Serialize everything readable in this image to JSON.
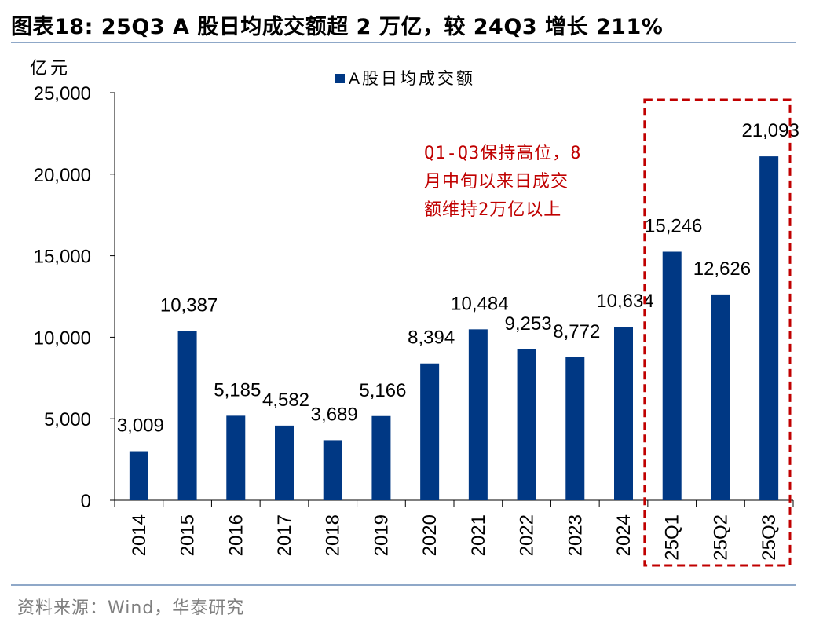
{
  "title": "图表18:  25Q3 A 股日均成交额超 2 万亿，较 24Q3 增长 211%",
  "source": "资料来源：Wind，华泰研究",
  "colors": {
    "bar": "#003884",
    "highlight_box": "#c00000",
    "annotation": "#c00000",
    "rule": "#8fa8c8"
  },
  "chart_data": {
    "type": "bar",
    "title": "图表18:  25Q3 A 股日均成交额超 2 万亿，较 24Q3 增长 211%",
    "ylabel": "亿元",
    "xlabel": "",
    "ylim": [
      0,
      25000
    ],
    "yticks": [
      0,
      5000,
      10000,
      15000,
      20000,
      25000
    ],
    "ytick_labels": [
      "0",
      "5,000",
      "10,000",
      "15,000",
      "20,000",
      "25,000"
    ],
    "legend": [
      "A股日均成交额"
    ],
    "legend_position": "top-center",
    "categories": [
      "2014",
      "2015",
      "2016",
      "2017",
      "2018",
      "2019",
      "2020",
      "2021",
      "2022",
      "2023",
      "2024",
      "25Q1",
      "25Q2",
      "25Q3"
    ],
    "values": [
      3009,
      10387,
      5185,
      4582,
      3689,
      5166,
      8394,
      10484,
      9253,
      8772,
      10634,
      15246,
      12626,
      21093
    ],
    "value_labels": [
      "3,009",
      "10,387",
      "5,185",
      "4,582",
      "3,689",
      "5,166",
      "8,394",
      "10,484",
      "9,253",
      "8,772",
      "10,634",
      "15,246",
      "12,626",
      "21,093"
    ],
    "highlight_range": [
      "25Q1",
      "25Q3"
    ],
    "annotation": [
      "Q1-Q3保持高位，8",
      "月中旬以来日成交",
      "额维持2万亿以上"
    ]
  }
}
